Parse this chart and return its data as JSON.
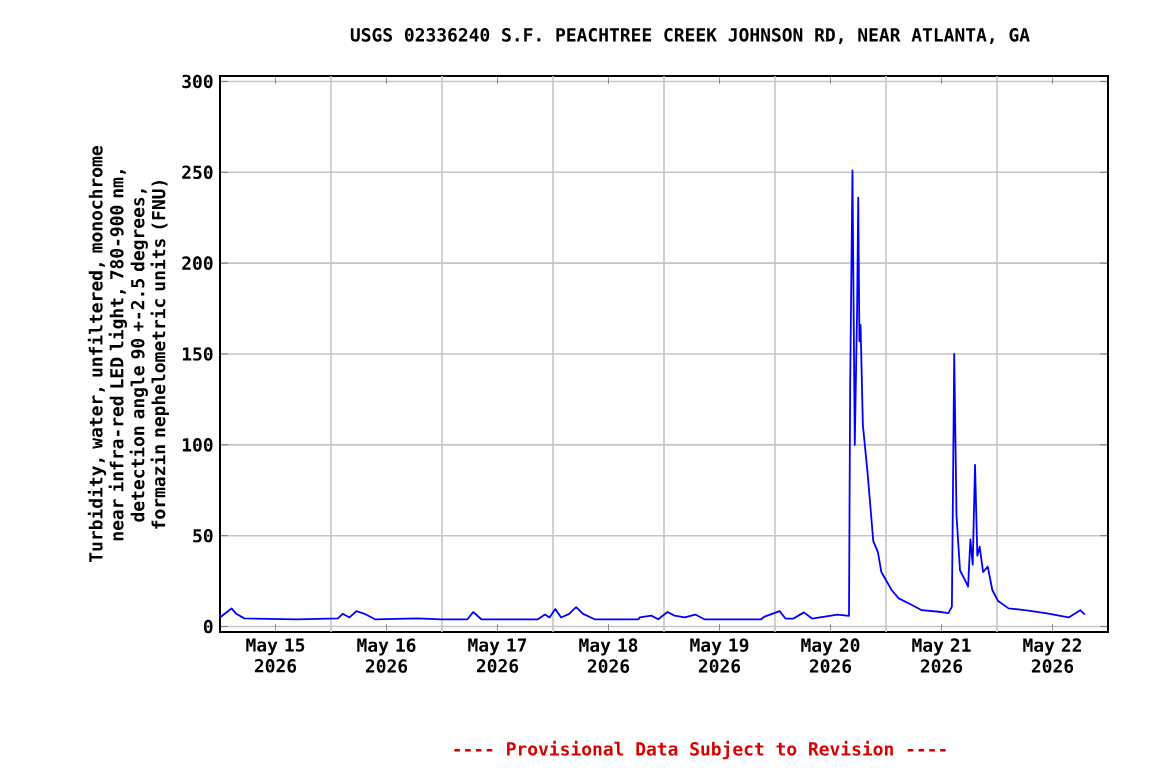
{
  "chart_data": {
    "type": "line",
    "title": "USGS 02336240 S.F. PEACHTREE CREEK JOHNSON RD, NEAR ATLANTA, GA",
    "ylabel": "Turbidity, water, unfiltered, monochrome near infra-red LED light, 780-900 nm, detection angle 90 +-2.5 degrees, formazin nephelometric units (FNU)",
    "annotations": [
      "---- Provisional Data Subject to Revision ----"
    ],
    "x": [
      "2026-05-15T00:00",
      "2026-05-15T01:30",
      "2026-05-15T02:30",
      "2026-05-15T03:30",
      "2026-05-15T05:15",
      "2026-05-15T16:45",
      "2026-05-16T01:30",
      "2026-05-16T02:30",
      "2026-05-16T04:00",
      "2026-05-16T05:30",
      "2026-05-16T07:15",
      "2026-05-16T09:30",
      "2026-05-16T18:45",
      "2026-05-16T23:45",
      "2026-05-17T05:30",
      "2026-05-17T06:45",
      "2026-05-17T08:30",
      "2026-05-17T20:45",
      "2026-05-17T22:15",
      "2026-05-17T23:15",
      "2026-05-18T00:30",
      "2026-05-18T01:45",
      "2026-05-18T03:30",
      "2026-05-18T05:00",
      "2026-05-18T06:30",
      "2026-05-18T09:00",
      "2026-05-18T18:30",
      "2026-05-18T18:45",
      "2026-05-18T21:15",
      "2026-05-18T22:45",
      "2026-05-19T00:45",
      "2026-05-19T02:15",
      "2026-05-19T04:30",
      "2026-05-19T06:45",
      "2026-05-19T08:45",
      "2026-05-19T21:00",
      "2026-05-19T21:45",
      "2026-05-20T01:00",
      "2026-05-20T02:15",
      "2026-05-20T04:00",
      "2026-05-20T06:15",
      "2026-05-20T08:00",
      "2026-05-20T13:30",
      "2026-05-20T16:00",
      "2026-05-20T16:15",
      "2026-05-20T16:45",
      "2026-05-20T17:15",
      "2026-05-20T17:45",
      "2026-05-20T18:00",
      "2026-05-20T18:15",
      "2026-05-20T18:30",
      "2026-05-20T19:00",
      "2026-05-20T20:00",
      "2026-05-20T20:30",
      "2026-05-20T21:15",
      "2026-05-20T22:15",
      "2026-05-20T23:00",
      "2026-05-21T01:15",
      "2026-05-21T02:45",
      "2026-05-21T05:30",
      "2026-05-21T07:45",
      "2026-05-21T12:00",
      "2026-05-21T13:30",
      "2026-05-21T14:15",
      "2026-05-21T14:30",
      "2026-05-21T14:45",
      "2026-05-21T15:15",
      "2026-05-21T16:00",
      "2026-05-21T17:00",
      "2026-05-21T17:45",
      "2026-05-21T18:15",
      "2026-05-21T18:45",
      "2026-05-21T19:15",
      "2026-05-21T19:45",
      "2026-05-21T20:15",
      "2026-05-21T21:00",
      "2026-05-21T22:00",
      "2026-05-21T23:00",
      "2026-05-22T00:15",
      "2026-05-22T02:30",
      "2026-05-22T06:00",
      "2026-05-22T10:30",
      "2026-05-22T15:30",
      "2026-05-22T18:00",
      "2026-05-22T19:00"
    ],
    "series": [
      {
        "color": "#0000ff",
        "values": [
          5,
          8,
          10,
          7,
          4.5,
          4,
          4.5,
          7,
          5,
          8.5,
          7,
          4,
          4.5,
          4,
          4,
          8,
          4,
          4,
          6.6,
          5,
          9.6,
          5,
          7,
          10.7,
          7,
          4,
          4,
          5,
          6,
          4,
          8,
          6,
          5,
          6.6,
          4,
          4,
          5.5,
          8.5,
          4.4,
          4.4,
          7.8,
          4.4,
          6.6,
          5.9,
          131,
          251,
          100,
          174,
          236,
          157,
          166,
          111,
          85,
          70,
          47,
          41,
          30,
          20,
          15.5,
          12,
          9,
          8,
          7.4,
          11,
          80,
          150,
          61,
          31,
          26,
          22,
          48,
          34,
          89,
          39,
          44,
          30,
          33,
          20,
          14,
          10,
          9,
          7.4,
          5,
          9,
          6.6
        ]
      }
    ],
    "xlim": [
      "2026-05-15T00:00",
      "2026-05-23T00:00"
    ],
    "ylim": [
      -3,
      303
    ],
    "xticks": [
      {
        "value": "2026-05-15T12:00",
        "label": "May 15 2026"
      },
      {
        "value": "2026-05-16T12:00",
        "label": "May 16 2026"
      },
      {
        "value": "2026-05-17T12:00",
        "label": "May 17 2026"
      },
      {
        "value": "2026-05-18T12:00",
        "label": "May 18 2026"
      },
      {
        "value": "2026-05-19T12:00",
        "label": "May 19 2026"
      },
      {
        "value": "2026-05-20T12:00",
        "label": "May 20 2026"
      },
      {
        "value": "2026-05-21T12:00",
        "label": "May 21 2026"
      },
      {
        "value": "2026-05-22T12:00",
        "label": "May 22 2026"
      },
      {
        "value": "2026-05-16T00:00",
        "label": null
      },
      {
        "value": "2026-05-17T00:00",
        "label": null
      },
      {
        "value": "2026-05-18T00:00",
        "label": null
      },
      {
        "value": "2026-05-19T00:00",
        "label": null
      },
      {
        "value": "2026-05-20T00:00",
        "label": null
      },
      {
        "value": "2026-05-21T00:00",
        "label": null
      },
      {
        "value": "2026-05-22T00:00",
        "label": null
      }
    ],
    "yticks": [
      0,
      50,
      100,
      150,
      200,
      250,
      300
    ],
    "grid": true
  }
}
